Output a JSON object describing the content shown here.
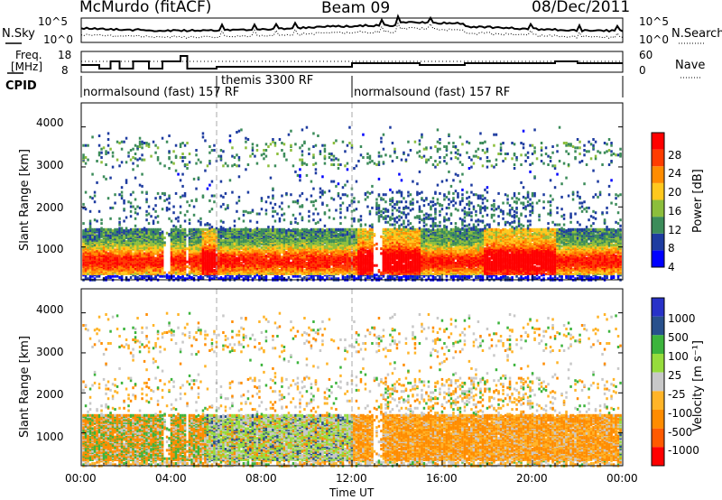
{
  "header": {
    "station": "McMurdo (fitACF)",
    "beam": "Beam 09",
    "date": "08/Dec/2011"
  },
  "noise_panel": {
    "left_label": "N.Sky",
    "right_label": "N.Search",
    "left_ticks": [
      "10^5",
      "10^0"
    ],
    "right_ticks": [
      "10^5",
      "10^0"
    ]
  },
  "freq_panel": {
    "left_label_1": "Freq.",
    "left_label_2": "[MHz]",
    "left_ticks": [
      "18",
      "8"
    ],
    "right_label": "Nave",
    "right_ticks": [
      "60",
      "0"
    ],
    "cpid_label": "CPID"
  },
  "cpid_segments": [
    {
      "label": "normalsound (fast) 157 RF",
      "start_hour": 0
    },
    {
      "label": "themis 3300 RF",
      "start_hour": 6
    },
    {
      "label": "normalsound (fast) 157 RF",
      "start_hour": 12
    }
  ],
  "power_panel": {
    "ylabel": "Slant Range [km]",
    "yticks": [
      "4000",
      "3000",
      "2000",
      "1000"
    ],
    "colorbar_label": "Power [dB]",
    "colorbar_ticks": [
      "28",
      "24",
      "20",
      "16",
      "12",
      "8",
      "4"
    ]
  },
  "velocity_panel": {
    "ylabel": "Slant Range [km]",
    "yticks": [
      "4000",
      "3000",
      "2000",
      "1000"
    ],
    "colorbar_label": "Velocity [m s⁻¹]",
    "colorbar_ticks": [
      "1000",
      "500",
      "100",
      "25",
      "-25",
      "-100",
      "-500",
      "-1000"
    ]
  },
  "xaxis": {
    "ticks": [
      "00:00",
      "04:00",
      "08:00",
      "12:00",
      "16:00",
      "20:00",
      "00:00"
    ],
    "label": "Time UT"
  },
  "colors": {
    "power": [
      "#0000ff",
      "#1e3ca0",
      "#3c8c5a",
      "#8cbe3c",
      "#ffc81e",
      "#ff8c00",
      "#ff3c00",
      "#ff0000"
    ],
    "velocity": [
      "#2832c8",
      "#28508c",
      "#3cb43c",
      "#96dc3c",
      "#c8c8c8",
      "#ffb428",
      "#ff8c00",
      "#ff5a00",
      "#ff0000"
    ]
  },
  "chart_data": [
    {
      "type": "line",
      "title": "McMurdo (fitACF) Beam 09 08/Dec/2011",
      "series": [
        {
          "name": "N.Sky"
        },
        {
          "name": "N.Search"
        }
      ],
      "x_range_hours": [
        0,
        24
      ],
      "yscale": "log",
      "ylim": [
        1,
        100000
      ]
    },
    {
      "type": "line",
      "series": [
        {
          "name": "Freq."
        },
        {
          "name": "Nave"
        }
      ],
      "x_range_hours": [
        0,
        24
      ],
      "ylim_freq": [
        8,
        18
      ],
      "ylim_nave": [
        0,
        60
      ]
    },
    {
      "type": "heatmap",
      "ylabel": "Slant Range [km]",
      "xlabel": "Time UT",
      "x_range_hours": [
        0,
        24
      ],
      "ylim": [
        180,
        4600
      ],
      "value_label": "Power [dB]",
      "color_range": [
        0,
        30
      ],
      "bands": [
        {
          "start_hour": 0.2,
          "end_hour": 11.8,
          "range_km": [
            400,
            1400
          ],
          "peak_db": 28
        },
        {
          "start_hour": 12.0,
          "end_hour": 23.8,
          "range_km": [
            400,
            1400
          ],
          "peak_db": 28
        },
        {
          "start_hour": 0.5,
          "end_hour": 23.5,
          "range_km": [
            3000,
            3600
          ],
          "peak_db": 12
        }
      ]
    },
    {
      "type": "heatmap",
      "ylabel": "Slant Range [km]",
      "xlabel": "Time UT",
      "x_range_hours": [
        0,
        24
      ],
      "ylim": [
        180,
        4600
      ],
      "value_label": "Velocity [m s⁻¹]",
      "color_range": [
        -1000,
        1000
      ],
      "bands": [
        {
          "start_hour": 0.2,
          "end_hour": 11.8,
          "range_km": [
            400,
            1400
          ],
          "typical_velocity": -100
        },
        {
          "start_hour": 12.0,
          "end_hour": 23.8,
          "range_km": [
            400,
            1400
          ],
          "typical_velocity": -100
        }
      ]
    }
  ]
}
